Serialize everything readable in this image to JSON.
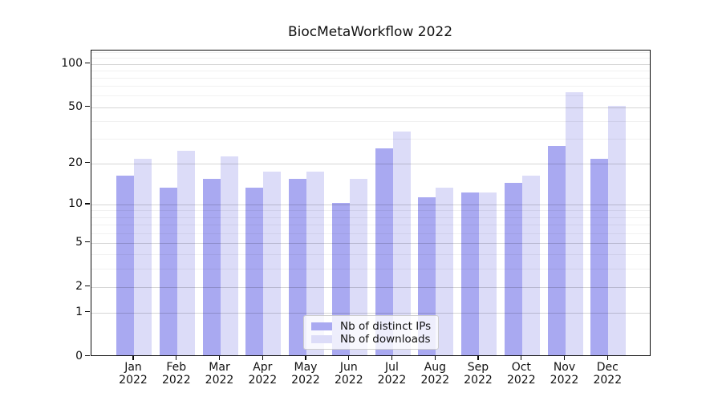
{
  "chart_data": {
    "type": "bar",
    "title": "BiocMetaWorkflow 2022",
    "categories": [
      "Jan",
      "Feb",
      "Mar",
      "Apr",
      "May",
      "Jun",
      "Jul",
      "Aug",
      "Sep",
      "Oct",
      "Nov",
      "Dec"
    ],
    "category_year": "2022",
    "series": [
      {
        "name": "Nb of distinct IPs",
        "color": "#a9a9f1",
        "values": [
          16,
          13,
          15,
          13,
          15,
          10,
          25,
          11,
          12,
          14,
          26,
          21
        ]
      },
      {
        "name": "Nb of downloads",
        "color": "#dcdcf8",
        "values": [
          21,
          24,
          22,
          17,
          17,
          15,
          33,
          13,
          12,
          16,
          62,
          50
        ]
      }
    ],
    "yscale": "log1p",
    "ylim": [
      0,
      123.5
    ],
    "yticks": [
      0,
      1,
      2,
      5,
      10,
      20,
      50,
      100
    ],
    "yticks_minor": [
      3,
      4,
      6,
      7,
      8,
      9,
      30,
      40,
      60,
      70,
      80,
      90,
      110,
      120
    ],
    "grid": "horizontal",
    "legend_position": "lower center"
  }
}
